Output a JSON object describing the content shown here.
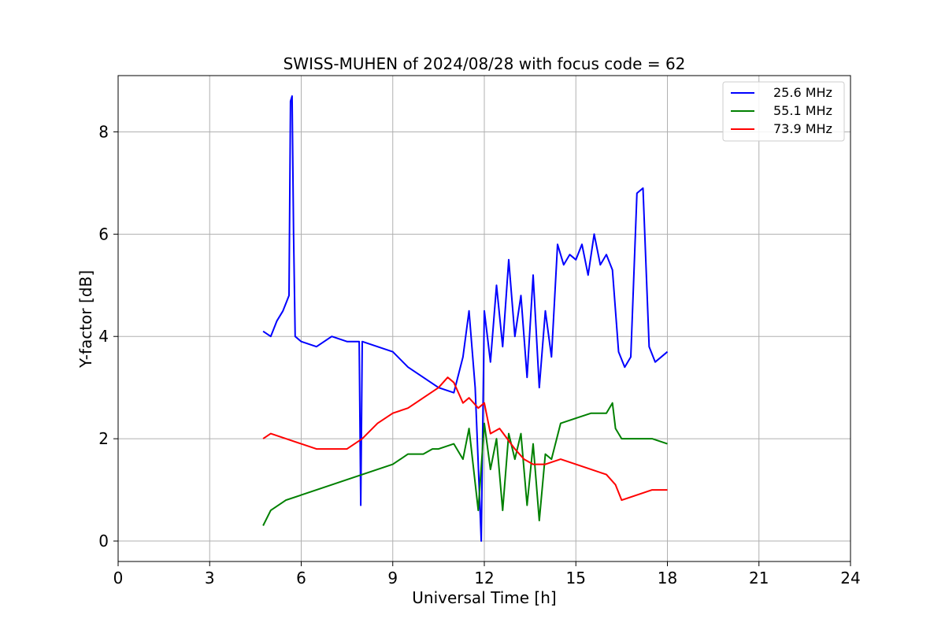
{
  "chart_data": {
    "type": "line",
    "title": "SWISS-MUHEN of 2024/08/28 with focus code = 62",
    "xlabel": "Universal Time [h]",
    "ylabel": "Y-factor [dB]",
    "xlim": [
      0,
      24
    ],
    "ylim": [
      -0.4,
      9.1
    ],
    "xticks": [
      0,
      3,
      6,
      9,
      12,
      15,
      18,
      21,
      24
    ],
    "xtick_labels": [
      "0",
      "3",
      "6",
      "9",
      "12",
      "15",
      "18",
      "21",
      "24"
    ],
    "yticks": [
      0,
      2,
      4,
      6,
      8
    ],
    "ytick_labels": [
      "0",
      "2",
      "4",
      "6",
      "8"
    ],
    "grid": true,
    "legend_position": "top-right",
    "series": [
      {
        "name": "25.6 MHz",
        "color": "#0000ff",
        "x": [
          4.75,
          5.0,
          5.2,
          5.4,
          5.6,
          5.65,
          5.7,
          5.75,
          5.8,
          6.0,
          6.5,
          7.0,
          7.5,
          7.9,
          7.95,
          8.0,
          8.5,
          9.0,
          9.5,
          10.0,
          10.5,
          11.0,
          11.3,
          11.5,
          11.7,
          11.8,
          11.9,
          12.0,
          12.2,
          12.4,
          12.6,
          12.8,
          13.0,
          13.2,
          13.4,
          13.6,
          13.8,
          14.0,
          14.2,
          14.4,
          14.6,
          14.8,
          15.0,
          15.2,
          15.4,
          15.6,
          15.8,
          16.0,
          16.2,
          16.4,
          16.6,
          16.8,
          17.0,
          17.2,
          17.4,
          17.6,
          17.8,
          18.0
        ],
        "y": [
          4.1,
          4.0,
          4.3,
          4.5,
          4.8,
          8.6,
          8.7,
          6.0,
          4.0,
          3.9,
          3.8,
          4.0,
          3.9,
          3.9,
          0.7,
          3.9,
          3.8,
          3.7,
          3.4,
          3.2,
          3.0,
          2.9,
          3.6,
          4.5,
          3.0,
          1.5,
          0.0,
          4.5,
          3.5,
          5.0,
          3.8,
          5.5,
          4.0,
          4.8,
          3.2,
          5.2,
          3.0,
          4.5,
          3.6,
          5.8,
          5.4,
          5.6,
          5.5,
          5.8,
          5.2,
          6.0,
          5.4,
          5.6,
          5.3,
          3.7,
          3.4,
          3.6,
          6.8,
          6.9,
          3.8,
          3.5,
          3.6,
          3.7
        ]
      },
      {
        "name": "55.1 MHz",
        "color": "#008000",
        "x": [
          4.75,
          5.0,
          5.5,
          6.0,
          6.5,
          7.0,
          7.5,
          8.0,
          8.5,
          9.0,
          9.5,
          10.0,
          10.3,
          10.5,
          11.0,
          11.3,
          11.5,
          11.8,
          12.0,
          12.2,
          12.4,
          12.6,
          12.8,
          13.0,
          13.2,
          13.4,
          13.6,
          13.8,
          14.0,
          14.2,
          14.5,
          15.0,
          15.5,
          16.0,
          16.2,
          16.3,
          16.5,
          17.0,
          17.5,
          18.0
        ],
        "y": [
          0.3,
          0.6,
          0.8,
          0.9,
          1.0,
          1.1,
          1.2,
          1.3,
          1.4,
          1.5,
          1.7,
          1.7,
          1.8,
          1.8,
          1.9,
          1.6,
          2.2,
          0.6,
          2.3,
          1.4,
          2.0,
          0.6,
          2.1,
          1.6,
          2.1,
          0.7,
          1.9,
          0.4,
          1.7,
          1.6,
          2.3,
          2.4,
          2.5,
          2.5,
          2.7,
          2.2,
          2.0,
          2.0,
          2.0,
          1.9
        ]
      },
      {
        "name": "73.9 MHz",
        "color": "#ff0000",
        "x": [
          4.75,
          5.0,
          5.5,
          6.0,
          6.5,
          7.0,
          7.5,
          8.0,
          8.5,
          9.0,
          9.5,
          10.0,
          10.5,
          10.8,
          11.0,
          11.3,
          11.5,
          11.8,
          12.0,
          12.2,
          12.5,
          13.0,
          13.3,
          13.6,
          13.8,
          14.0,
          14.5,
          15.0,
          15.5,
          16.0,
          16.3,
          16.5,
          17.0,
          17.5,
          18.0
        ],
        "y": [
          2.0,
          2.1,
          2.0,
          1.9,
          1.8,
          1.8,
          1.8,
          2.0,
          2.3,
          2.5,
          2.6,
          2.8,
          3.0,
          3.2,
          3.1,
          2.7,
          2.8,
          2.6,
          2.7,
          2.1,
          2.2,
          1.8,
          1.6,
          1.5,
          1.5,
          1.5,
          1.6,
          1.5,
          1.4,
          1.3,
          1.1,
          0.8,
          0.9,
          1.0,
          1.0
        ]
      }
    ]
  }
}
